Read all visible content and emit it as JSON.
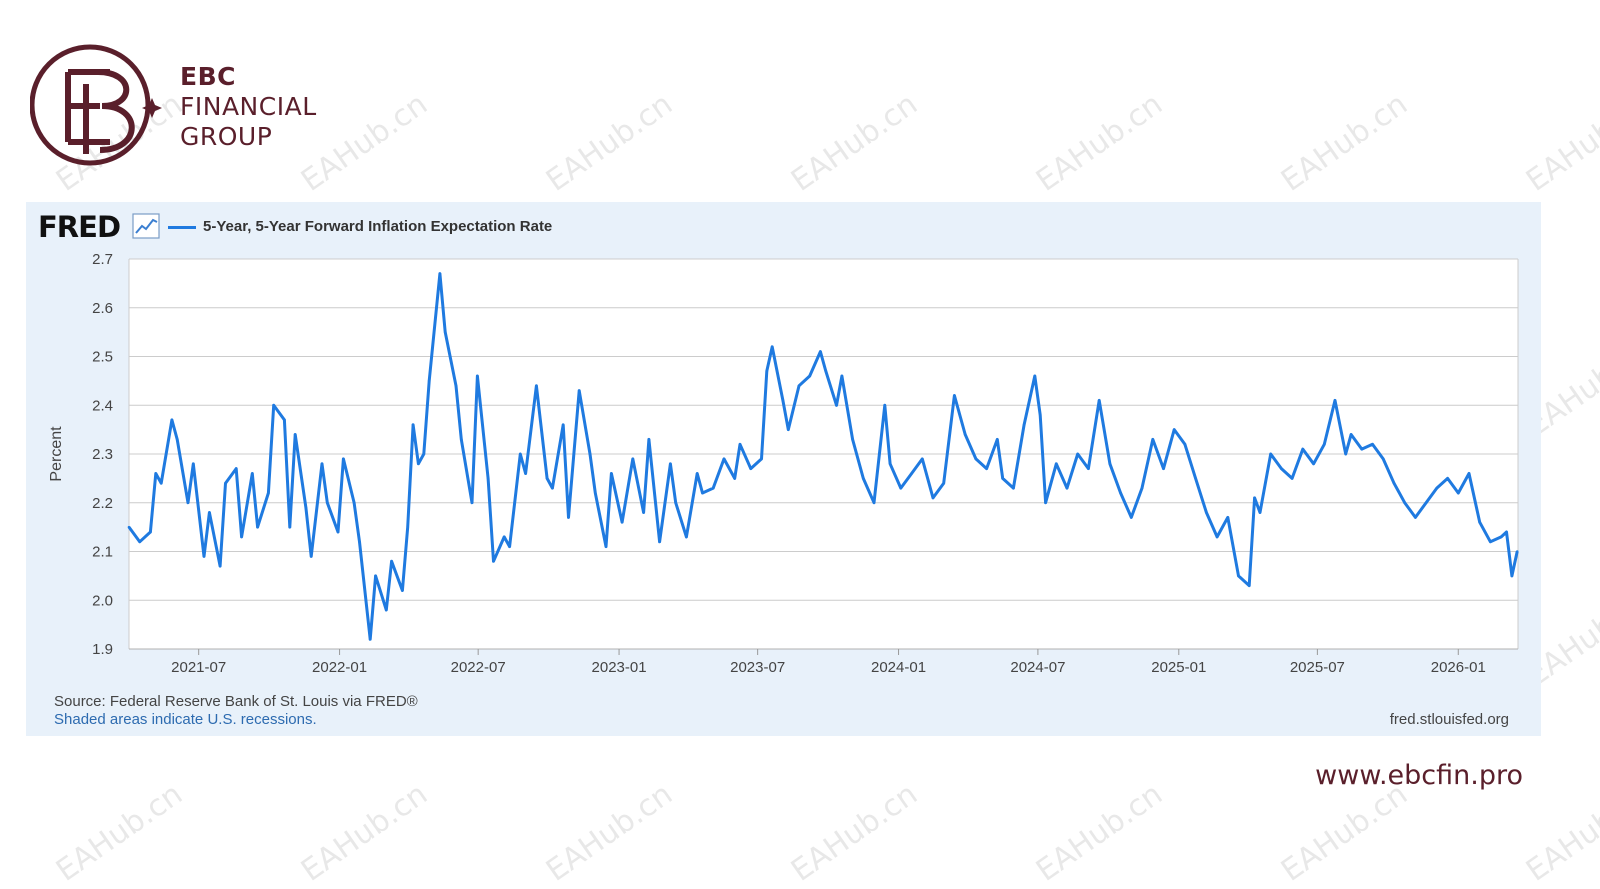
{
  "brand": {
    "line1": "EBC",
    "line2": "FINANCIAL",
    "line3": "GROUP",
    "color": "#5a1f2b",
    "website": "www.ebcfin.pro"
  },
  "watermark": {
    "text": "EAHub.cn"
  },
  "fred": {
    "logo_text": "FRED",
    "source": "Source: Federal Reserve Bank of St. Louis via FRED®",
    "recession_note": "Shaded areas indicate U.S. recessions.",
    "url": "fred.stlouisfed.org",
    "line_color": "#1f7ae0"
  },
  "chart_data": {
    "type": "line",
    "title": "",
    "xlabel": "",
    "ylabel": "Percent",
    "ylim": [
      1.9,
      2.7
    ],
    "xlim": [
      "2021-04-01",
      "2026-03-20"
    ],
    "yticks": [
      "2.7",
      "2.6",
      "2.5",
      "2.4",
      "2.3",
      "2.2",
      "2.1",
      "2.0",
      "1.9"
    ],
    "xticks": [
      "2021-07",
      "2022-01",
      "2022-07",
      "2023-01",
      "2023-07",
      "2024-01",
      "2024-07",
      "2025-01",
      "2025-07",
      "2026-01"
    ],
    "grid": true,
    "legend": "top-left",
    "series": [
      {
        "name": "5-Year, 5-Year Forward Inflation Expectation Rate",
        "x": [
          "2021-04-01",
          "2021-04-15",
          "2021-04-29",
          "2021-05-06",
          "2021-05-13",
          "2021-05-27",
          "2021-06-03",
          "2021-06-17",
          "2021-06-24",
          "2021-07-08",
          "2021-07-15",
          "2021-07-29",
          "2021-08-05",
          "2021-08-19",
          "2021-08-26",
          "2021-09-09",
          "2021-09-16",
          "2021-09-30",
          "2021-10-07",
          "2021-10-21",
          "2021-10-28",
          "2021-11-04",
          "2021-11-18",
          "2021-11-25",
          "2021-12-09",
          "2021-12-16",
          "2021-12-30",
          "2022-01-06",
          "2022-01-20",
          "2022-01-27",
          "2022-02-10",
          "2022-02-17",
          "2022-03-03",
          "2022-03-10",
          "2022-03-24",
          "2022-03-31",
          "2022-04-07",
          "2022-04-14",
          "2022-04-21",
          "2022-04-28",
          "2022-05-12",
          "2022-05-19",
          "2022-06-02",
          "2022-06-09",
          "2022-06-23",
          "2022-06-30",
          "2022-07-14",
          "2022-07-21",
          "2022-08-04",
          "2022-08-11",
          "2022-08-25",
          "2022-09-01",
          "2022-09-15",
          "2022-09-29",
          "2022-10-06",
          "2022-10-20",
          "2022-10-27",
          "2022-11-10",
          "2022-11-24",
          "2022-12-01",
          "2022-12-15",
          "2022-12-22",
          "2023-01-05",
          "2023-01-19",
          "2023-02-02",
          "2023-02-09",
          "2023-02-23",
          "2023-03-09",
          "2023-03-16",
          "2023-03-30",
          "2023-04-13",
          "2023-04-20",
          "2023-05-04",
          "2023-05-18",
          "2023-06-01",
          "2023-06-08",
          "2023-06-22",
          "2023-07-06",
          "2023-07-13",
          "2023-07-20",
          "2023-08-03",
          "2023-08-10",
          "2023-08-24",
          "2023-09-07",
          "2023-09-21",
          "2023-09-28",
          "2023-10-12",
          "2023-10-19",
          "2023-11-02",
          "2023-11-16",
          "2023-11-30",
          "2023-12-14",
          "2023-12-21",
          "2024-01-04",
          "2024-01-18",
          "2024-02-01",
          "2024-02-15",
          "2024-02-29",
          "2024-03-14",
          "2024-03-28",
          "2024-04-11",
          "2024-04-25",
          "2024-05-09",
          "2024-05-16",
          "2024-05-30",
          "2024-06-13",
          "2024-06-27",
          "2024-07-04",
          "2024-07-11",
          "2024-07-25",
          "2024-08-08",
          "2024-08-22",
          "2024-09-05",
          "2024-09-19",
          "2024-10-03",
          "2024-10-17",
          "2024-10-31",
          "2024-11-14",
          "2024-11-28",
          "2024-12-12",
          "2024-12-26",
          "2025-01-09",
          "2025-01-23",
          "2025-02-06",
          "2025-02-20",
          "2025-03-06",
          "2025-03-20",
          "2025-04-03",
          "2025-04-10",
          "2025-04-17",
          "2025-05-01",
          "2025-05-15",
          "2025-05-29",
          "2025-06-12",
          "2025-06-26",
          "2025-07-10",
          "2025-07-24",
          "2025-08-07",
          "2025-08-14",
          "2025-08-28",
          "2025-09-11",
          "2025-09-25",
          "2025-10-09",
          "2025-10-23",
          "2025-11-06",
          "2025-11-20",
          "2025-12-04",
          "2025-12-18",
          "2026-01-01",
          "2026-01-15",
          "2026-01-29",
          "2026-02-12",
          "2026-02-26",
          "2026-03-05",
          "2026-03-12",
          "2026-03-19"
        ],
        "values": [
          2.15,
          2.12,
          2.14,
          2.26,
          2.24,
          2.37,
          2.33,
          2.2,
          2.28,
          2.09,
          2.18,
          2.07,
          2.24,
          2.27,
          2.13,
          2.26,
          2.15,
          2.22,
          2.4,
          2.37,
          2.15,
          2.34,
          2.19,
          2.09,
          2.28,
          2.2,
          2.14,
          2.29,
          2.2,
          2.12,
          1.92,
          2.05,
          1.98,
          2.08,
          2.02,
          2.15,
          2.36,
          2.28,
          2.3,
          2.45,
          2.67,
          2.55,
          2.44,
          2.33,
          2.2,
          2.46,
          2.25,
          2.08,
          2.13,
          2.11,
          2.3,
          2.26,
          2.44,
          2.25,
          2.23,
          2.36,
          2.17,
          2.43,
          2.3,
          2.22,
          2.11,
          2.26,
          2.16,
          2.29,
          2.18,
          2.33,
          2.12,
          2.28,
          2.2,
          2.13,
          2.26,
          2.22,
          2.23,
          2.29,
          2.25,
          2.32,
          2.27,
          2.29,
          2.47,
          2.52,
          2.41,
          2.35,
          2.44,
          2.46,
          2.51,
          2.47,
          2.4,
          2.46,
          2.33,
          2.25,
          2.2,
          2.4,
          2.28,
          2.23,
          2.26,
          2.29,
          2.21,
          2.24,
          2.42,
          2.34,
          2.29,
          2.27,
          2.33,
          2.25,
          2.23,
          2.36,
          2.46,
          2.38,
          2.2,
          2.28,
          2.23,
          2.3,
          2.27,
          2.41,
          2.28,
          2.22,
          2.17,
          2.23,
          2.33,
          2.27,
          2.35,
          2.32,
          2.25,
          2.18,
          2.13,
          2.17,
          2.05,
          2.03,
          2.21,
          2.18,
          2.3,
          2.27,
          2.25,
          2.31,
          2.28,
          2.32,
          2.41,
          2.3,
          2.34,
          2.31,
          2.32,
          2.29,
          2.24,
          2.2,
          2.17,
          2.2,
          2.23,
          2.25,
          2.22,
          2.26,
          2.16,
          2.12,
          2.13,
          2.14,
          2.05,
          2.1
        ]
      }
    ]
  }
}
